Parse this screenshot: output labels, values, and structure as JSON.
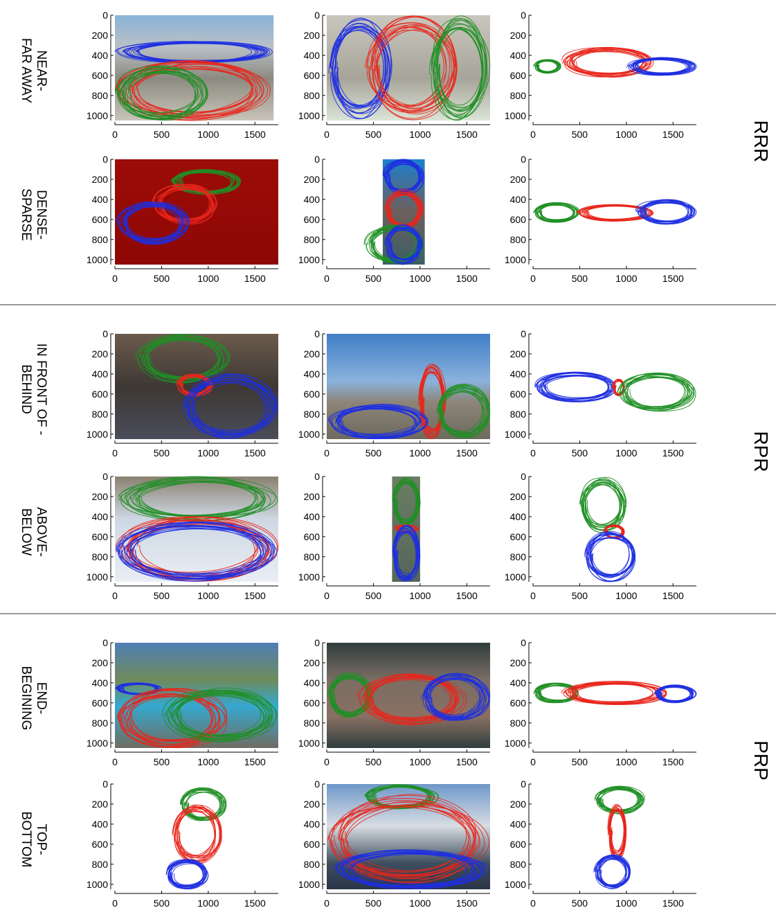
{
  "groups": [
    {
      "label": "RRR"
    },
    {
      "label": "RPR"
    },
    {
      "label": "PRP"
    }
  ],
  "row_labels": [
    {
      "lines": [
        "NEAR-",
        "FAR AWAY"
      ]
    },
    {
      "lines": [
        "DENSE-",
        "SPARSE"
      ]
    },
    {
      "lines": [
        "IN FRONT OF -",
        "BEHIND"
      ]
    },
    {
      "lines": [
        "ABOVE-",
        "BELOW"
      ]
    },
    {
      "lines": [
        "END-",
        "BEGINING"
      ]
    },
    {
      "lines": [
        "TOP-",
        "BOTTOM"
      ]
    }
  ],
  "series_colors": {
    "red": "#e8261c",
    "green": "#1f8f25",
    "blue": "#1e2fe0"
  },
  "chart_data": {
    "type": "trajectory-grid",
    "description_of_panels": "6 rows x 3 columns of trace plots; axes shared units",
    "xlim": [
      0,
      1750
    ],
    "ylim": [
      0,
      1050
    ],
    "y_inverted": true,
    "xticks": [
      0,
      500,
      1000,
      1500
    ],
    "yticks": [
      0,
      200,
      400,
      600,
      800,
      1000
    ],
    "panels": [
      [
        {
          "bg": "photo-beach",
          "extent": [
            0,
            0,
            1700,
            1050
          ],
          "regions": [
            {
              "color": "blue",
              "box": [
                0,
                250,
                1700,
                480
              ]
            },
            {
              "color": "red",
              "box": [
                0,
                450,
                1700,
                1050
              ]
            },
            {
              "color": "green",
              "box": [
                0,
                500,
                1000,
                1050
              ]
            }
          ]
        },
        {
          "bg": "photo-wall",
          "extent": [
            0,
            0,
            1750,
            1050
          ],
          "regions": [
            {
              "color": "blue",
              "box": [
                0,
                0,
                700,
                1050
              ]
            },
            {
              "color": "red",
              "box": [
                400,
                0,
                1400,
                1050
              ]
            },
            {
              "color": "green",
              "box": [
                1100,
                0,
                1750,
                1050
              ]
            }
          ]
        },
        {
          "bg": "none",
          "regions": [
            {
              "color": "green",
              "box": [
                0,
                440,
                300,
                580
              ]
            },
            {
              "color": "red",
              "box": [
                300,
                320,
                1300,
                620
              ]
            },
            {
              "color": "blue",
              "box": [
                1000,
                420,
                1750,
                600
              ]
            }
          ]
        }
      ],
      [
        {
          "bg": "solid-dark-red",
          "extent": [
            0,
            0,
            1750,
            1050
          ],
          "regions": [
            {
              "color": "green",
              "box": [
                600,
                100,
                1350,
                350
              ]
            },
            {
              "color": "red",
              "box": [
                400,
                250,
                1100,
                650
              ]
            },
            {
              "color": "blue",
              "box": [
                0,
                420,
                800,
                850
              ]
            }
          ]
        },
        {
          "bg": "photo-tower",
          "extent": [
            600,
            0,
            1050,
            1050
          ],
          "regions": [
            {
              "color": "blue",
              "box": [
                600,
                0,
                1050,
                350
              ]
            },
            {
              "color": "red",
              "box": [
                620,
                300,
                1030,
                700
              ]
            },
            {
              "color": "green",
              "box": [
                400,
                650,
                1050,
                1050
              ]
            },
            {
              "color": "blue",
              "box": [
                620,
                650,
                1030,
                1050
              ]
            }
          ]
        },
        {
          "bg": "none",
          "regions": [
            {
              "color": "green",
              "box": [
                0,
                430,
                500,
                630
              ]
            },
            {
              "color": "red",
              "box": [
                450,
                450,
                1300,
                620
              ]
            },
            {
              "color": "blue",
              "box": [
                1100,
                400,
                1750,
                650
              ]
            }
          ]
        }
      ],
      [
        {
          "bg": "photo-street",
          "extent": [
            0,
            0,
            1750,
            1050
          ],
          "regions": [
            {
              "color": "green",
              "box": [
                200,
                0,
                1250,
                500
              ]
            },
            {
              "color": "red",
              "box": [
                650,
                400,
                1050,
                620
              ]
            },
            {
              "color": "blue",
              "box": [
                700,
                400,
                1750,
                1050
              ]
            }
          ]
        },
        {
          "bg": "photo-mountain",
          "extent": [
            0,
            0,
            1750,
            1050
          ],
          "regions": [
            {
              "color": "red",
              "box": [
                980,
                300,
                1280,
                1050
              ]
            },
            {
              "color": "green",
              "box": [
                1150,
                500,
                1750,
                1050
              ]
            },
            {
              "color": "blue",
              "box": [
                0,
                700,
                1100,
                1050
              ]
            }
          ]
        },
        {
          "bg": "none",
          "regions": [
            {
              "color": "blue",
              "box": [
                0,
                380,
                900,
                680
              ]
            },
            {
              "color": "red",
              "box": [
                850,
                450,
                980,
                620
              ]
            },
            {
              "color": "green",
              "box": [
                900,
                380,
                1750,
                780
              ]
            }
          ]
        }
      ],
      [
        {
          "bg": "photo-snow",
          "extent": [
            0,
            0,
            1750,
            1050
          ],
          "regions": [
            {
              "color": "green",
              "box": [
                0,
                0,
                1750,
                450
              ]
            },
            {
              "color": "red",
              "box": [
                0,
                400,
                1750,
                1050
              ]
            },
            {
              "color": "blue",
              "box": [
                0,
                450,
                1750,
                1050
              ]
            }
          ]
        },
        {
          "bg": "photo-bottle",
          "extent": [
            700,
            0,
            1000,
            1050
          ],
          "regions": [
            {
              "color": "green",
              "box": [
                700,
                0,
                1000,
                500
              ]
            },
            {
              "color": "red",
              "box": [
                720,
                480,
                980,
                560
              ]
            },
            {
              "color": "blue",
              "box": [
                700,
                480,
                1000,
                1050
              ]
            }
          ]
        },
        {
          "bg": "none",
          "regions": [
            {
              "color": "green",
              "box": [
                500,
                0,
                1000,
                560
              ]
            },
            {
              "color": "red",
              "box": [
                750,
                480,
                980,
                620
              ]
            },
            {
              "color": "blue",
              "box": [
                550,
                540,
                1100,
                1050
              ]
            }
          ]
        }
      ],
      [
        {
          "bg": "photo-pool",
          "extent": [
            0,
            0,
            1750,
            1050
          ],
          "regions": [
            {
              "color": "blue",
              "box": [
                0,
                400,
                500,
                520
              ]
            },
            {
              "color": "red",
              "box": [
                0,
                450,
                1200,
                1050
              ]
            },
            {
              "color": "green",
              "box": [
                500,
                450,
                1750,
                1000
              ]
            }
          ]
        },
        {
          "bg": "photo-track",
          "extent": [
            0,
            0,
            1750,
            1050
          ],
          "regions": [
            {
              "color": "green",
              "box": [
                0,
                300,
                500,
                750
              ]
            },
            {
              "color": "red",
              "box": [
                300,
                300,
                1500,
                820
              ]
            },
            {
              "color": "blue",
              "box": [
                1000,
                300,
                1750,
                780
              ]
            }
          ]
        },
        {
          "bg": "none",
          "regions": [
            {
              "color": "green",
              "box": [
                0,
                400,
                500,
                600
              ]
            },
            {
              "color": "red",
              "box": [
                300,
                380,
                1450,
                620
              ]
            },
            {
              "color": "blue",
              "box": [
                1300,
                420,
                1750,
                600
              ]
            }
          ]
        }
      ],
      [
        {
          "bg": "none",
          "regions": [
            {
              "color": "green",
              "box": [
                700,
                30,
                1200,
                380
              ]
            },
            {
              "color": "red",
              "box": [
                600,
                200,
                1150,
                800
              ]
            },
            {
              "color": "blue",
              "box": [
                550,
                750,
                1000,
                1050
              ]
            }
          ]
        },
        {
          "bg": "photo-peak",
          "extent": [
            0,
            0,
            1750,
            1050
          ],
          "regions": [
            {
              "color": "green",
              "box": [
                400,
                0,
                1200,
                250
              ]
            },
            {
              "color": "red",
              "box": [
                0,
                100,
                1750,
                1000
              ]
            },
            {
              "color": "blue",
              "box": [
                0,
                650,
                1750,
                1050
              ]
            }
          ]
        },
        {
          "bg": "none",
          "regions": [
            {
              "color": "green",
              "box": [
                650,
                20,
                1200,
                300
              ]
            },
            {
              "color": "red",
              "box": [
                800,
                200,
                1000,
                750
              ]
            },
            {
              "color": "blue",
              "box": [
                650,
                700,
                1050,
                1050
              ]
            }
          ]
        }
      ]
    ]
  }
}
